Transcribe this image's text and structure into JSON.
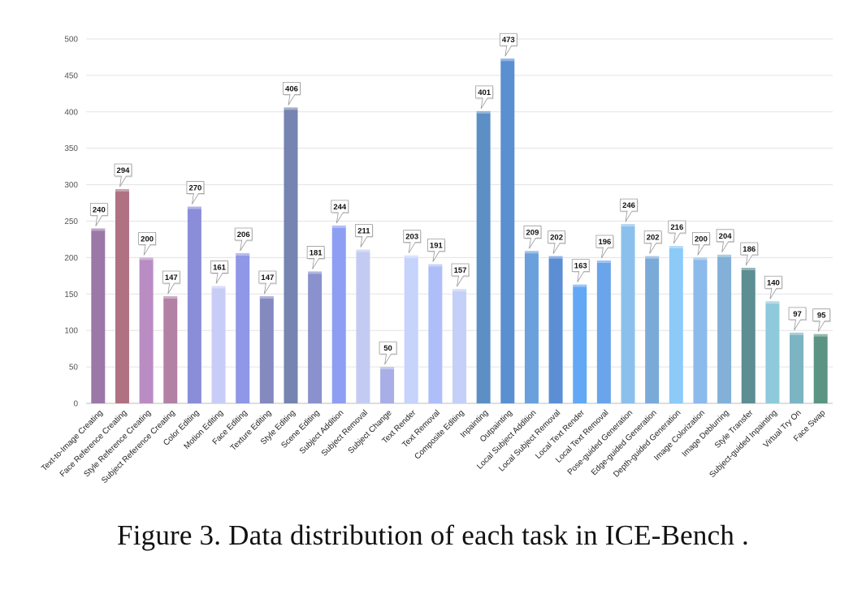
{
  "chart_data": {
    "type": "bar",
    "categories": [
      "Text-to-Image Creating",
      "Face Reference Creating",
      "Style Reference Creating",
      "Subject Reference Creating",
      "Color Editing",
      "Motion Editing",
      "Face Editing",
      "Texture Editing",
      "Style Editing",
      "Scene Editing",
      "Subject Addition",
      "Subject Removal",
      "Subject Change",
      "Text Render",
      "Text Removal",
      "Composite Editing",
      "Inpainting",
      "Outpainting",
      "Local Subject Addition",
      "Local Subject Removal",
      "Local Text Render",
      "Local Text Removal",
      "Pose-guided Generation",
      "Edge-guided Generation",
      "Depth-guided Generation",
      "Image Colorization",
      "Image Deblurring",
      "Style Transfer",
      "Subject-guided Inpainting",
      "Virtual Try On",
      "Face Swap"
    ],
    "values": [
      240,
      294,
      200,
      147,
      270,
      161,
      206,
      147,
      406,
      181,
      244,
      211,
      50,
      203,
      191,
      157,
      401,
      473,
      209,
      202,
      163,
      196,
      246,
      202,
      216,
      200,
      204,
      186,
      140,
      97,
      95
    ],
    "colors": [
      "#9b78a8",
      "#b07282",
      "#b98cc4",
      "#b281a3",
      "#8a8ed9",
      "#c8cdf7",
      "#8f97e6",
      "#8489c0",
      "#7584b0",
      "#8a91cc",
      "#8e9ef2",
      "#c4cbf2",
      "#a8aee6",
      "#c6d3fb",
      "#aebef8",
      "#c4d0f8",
      "#5c8fc4",
      "#5a8fd0",
      "#6aa0dc",
      "#5c8ed4",
      "#62a8f4",
      "#6aa4ea",
      "#8cc0ec",
      "#7aaad8",
      "#8ccaf8",
      "#8cbaea",
      "#82b0d8",
      "#5c8e94",
      "#8ecadc",
      "#7cb4c4",
      "#5c9484"
    ],
    "yticks": [
      0,
      50,
      100,
      150,
      200,
      250,
      300,
      350,
      400,
      450,
      500
    ],
    "ylim": [
      0,
      500
    ],
    "grid": true,
    "title": "",
    "xlabel": "",
    "ylabel": ""
  },
  "caption": "Figure 3. Data distribution of each task in ICE-Bench ."
}
